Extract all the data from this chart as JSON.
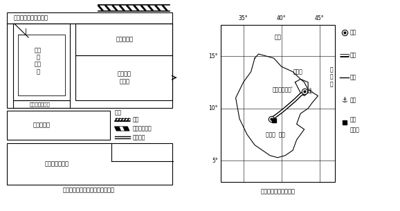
{
  "title_left": "东方工业园功能区规划结构示意图",
  "title_right": "东方工业园位置示意图",
  "bg_color": "#ffffff",
  "zones_left": {
    "admin": "行政服务及商品展示区",
    "building_materials": "建材工业区",
    "living_green": "生活\n及\n绿化\n区",
    "steel_upper": "钢铁冶金\n工业区",
    "other_processing": "其他加工工业区",
    "mechanical": "机电工业区",
    "steel_lower": "钢铁冶金工业区"
  },
  "legend_left": {
    "title": "图例",
    "items": [
      "铁路",
      "铁路货运站场",
      "主干道路"
    ]
  },
  "map_right": {
    "lon_labels": [
      "35°",
      "40°",
      "45°"
    ],
    "lat_labels": [
      "5°",
      "10°",
      "15°"
    ],
    "lon_ticks": [
      35,
      40,
      45
    ],
    "lat_ticks": [
      5,
      10,
      15
    ],
    "lat_min": 3,
    "lat_max": 18,
    "lon_min": 32,
    "lon_max": 47,
    "red_sea_label": "红海",
    "aden_bay_label": "亚\n丁\n湾",
    "djibouti_label": "吉布提",
    "addis_label": "亚的斯亚贝巴'",
    "ethiopia_label": "埃塞俄  比亚",
    "capital_lon": 38.7,
    "capital_lat": 9.0,
    "port_lon": 43.15,
    "port_lat": 11.6,
    "park_lon": 39.05,
    "park_lat": 8.85
  },
  "legend_right": {
    "items": [
      "首都",
      "铁路",
      "国界",
      "港口",
      "东方\n工业园"
    ]
  }
}
